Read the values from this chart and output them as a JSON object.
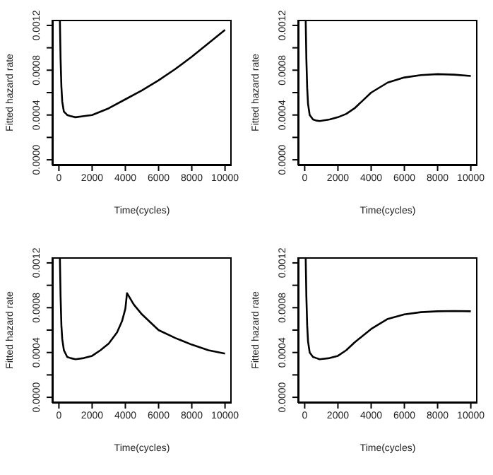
{
  "chart_data": [
    {
      "type": "line",
      "xlabel": "Time(cycles)",
      "ylabel": "Fitted hazard rate",
      "xlim": [
        -400,
        10400
      ],
      "ylim": [
        -5e-05,
        0.00125
      ],
      "xticks": [
        0,
        2000,
        4000,
        6000,
        8000,
        10000
      ],
      "yticks": [
        {
          "value": 0,
          "label": "0.0000"
        },
        {
          "value": 0.0002,
          "label": null
        },
        0.0004,
        {
          "value": 0.0006,
          "label": null
        },
        0.0008,
        {
          "value": 0.001,
          "label": null
        },
        0.0012
      ],
      "series": [
        {
          "color": "#000000",
          "x": [
            60,
            100,
            150,
            200,
            300,
            500,
            700,
            1000,
            1500,
            2000,
            3000,
            4000,
            5000,
            6000,
            7000,
            8000,
            9000,
            10000
          ],
          "values": [
            0.00124,
            0.0009,
            0.00065,
            0.00052,
            0.00043,
            0.0004,
            0.00039,
            0.00038,
            0.00039,
            0.0004,
            0.00046,
            0.00054,
            0.00062,
            0.00071,
            0.00081,
            0.00092,
            0.00104,
            0.00116
          ]
        }
      ]
    },
    {
      "type": "line",
      "xlabel": "Time(cycles)",
      "ylabel": "Fitted hazard rate",
      "xlim": [
        -400,
        10400
      ],
      "ylim": [
        -5e-05,
        0.00125
      ],
      "xticks": [
        0,
        2000,
        4000,
        6000,
        8000,
        10000
      ],
      "yticks": [
        {
          "value": 0,
          "label": "0.0000"
        },
        {
          "value": 0.0002,
          "label": null
        },
        0.0004,
        {
          "value": 0.0006,
          "label": null
        },
        0.0008,
        {
          "value": 0.001,
          "label": null
        },
        0.0012
      ],
      "series": [
        {
          "color": "#000000",
          "x": [
            60,
            100,
            150,
            200,
            300,
            500,
            700,
            900,
            1500,
            2000,
            2500,
            3000,
            3500,
            4000,
            5000,
            6000,
            7000,
            8000,
            9000,
            10000
          ],
          "values": [
            0.00124,
            0.0009,
            0.00064,
            0.0005,
            0.0004,
            0.00036,
            0.00035,
            0.000346,
            0.00036,
            0.00038,
            0.00041,
            0.00046,
            0.00053,
            0.0006,
            0.00069,
            0.000735,
            0.000756,
            0.000765,
            0.00076,
            0.000748
          ]
        }
      ]
    },
    {
      "type": "line",
      "xlabel": "Time(cycles)",
      "ylabel": "Fitted hazard rate",
      "xlim": [
        -400,
        10400
      ],
      "ylim": [
        -5e-05,
        0.00125
      ],
      "xticks": [
        0,
        2000,
        4000,
        6000,
        8000,
        10000
      ],
      "yticks": [
        {
          "value": 0,
          "label": "0.0000"
        },
        {
          "value": 0.0002,
          "label": null
        },
        0.0004,
        {
          "value": 0.0006,
          "label": null
        },
        0.0008,
        {
          "value": 0.001,
          "label": null
        },
        0.0012
      ],
      "series": [
        {
          "color": "#000000",
          "x": [
            60,
            100,
            150,
            200,
            300,
            500,
            700,
            1000,
            1500,
            2000,
            2500,
            3000,
            3500,
            3800,
            4000,
            4100,
            4500,
            5000,
            6000,
            7000,
            8000,
            9000,
            10000
          ],
          "values": [
            0.00124,
            0.0009,
            0.00064,
            0.00052,
            0.00042,
            0.00036,
            0.00035,
            0.00034,
            0.00035,
            0.00037,
            0.00042,
            0.00048,
            0.00058,
            0.00068,
            0.00079,
            0.00093,
            0.00083,
            0.00074,
            0.0006,
            0.00053,
            0.00047,
            0.00042,
            0.00039
          ]
        }
      ]
    },
    {
      "type": "line",
      "xlabel": "Time(cycles)",
      "ylabel": "Fitted hazard rate",
      "xlim": [
        -400,
        10400
      ],
      "ylim": [
        -5e-05,
        0.00125
      ],
      "xticks": [
        0,
        2000,
        4000,
        6000,
        8000,
        10000
      ],
      "yticks": [
        {
          "value": 0,
          "label": "0.0000"
        },
        {
          "value": 0.0002,
          "label": null
        },
        0.0004,
        {
          "value": 0.0006,
          "label": null
        },
        0.0008,
        {
          "value": 0.001,
          "label": null
        },
        0.0012
      ],
      "series": [
        {
          "color": "#000000",
          "x": [
            60,
            100,
            150,
            200,
            300,
            500,
            700,
            900,
            1500,
            2000,
            2500,
            3000,
            3500,
            4000,
            5000,
            6000,
            7000,
            8000,
            9000,
            10000
          ],
          "values": [
            0.00124,
            0.0009,
            0.00064,
            0.0005,
            0.0004,
            0.00036,
            0.00035,
            0.00034,
            0.00035,
            0.00037,
            0.00042,
            0.00049,
            0.00055,
            0.00061,
            0.0007,
            0.00074,
            0.00076,
            0.000768,
            0.00077,
            0.000768
          ]
        }
      ]
    }
  ]
}
